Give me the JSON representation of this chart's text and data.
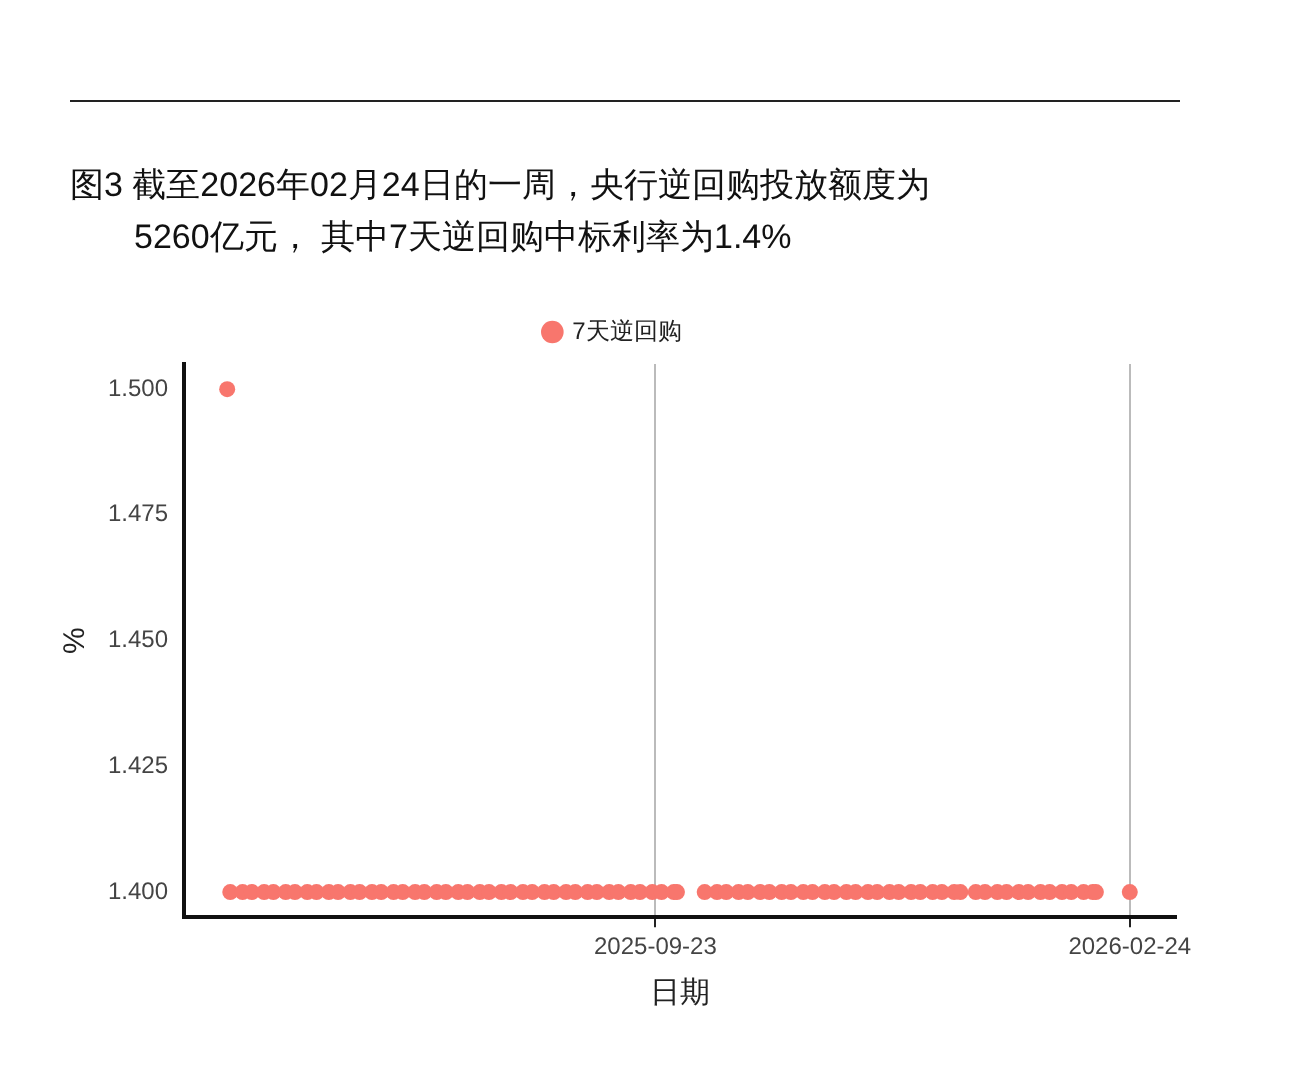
{
  "chart_data": {
    "type": "scatter",
    "title": "图3  截至2026年02月24日的一周，央行逆回购投放额度为5260亿元， 其中7天逆回购中标利率为1.4%",
    "xlabel": "日期",
    "ylabel": "%",
    "series": [
      {
        "name": "7天逆回购",
        "color": "#f8766d",
        "x": [
          "2025-05-07",
          "2025-05-08",
          "2025-05-12",
          "2025-05-15",
          "2025-05-19",
          "2025-05-22",
          "2025-05-26",
          "2025-05-29",
          "2025-06-02",
          "2025-06-05",
          "2025-06-09",
          "2025-06-12",
          "2025-06-16",
          "2025-06-19",
          "2025-06-23",
          "2025-06-26",
          "2025-06-30",
          "2025-07-03",
          "2025-07-07",
          "2025-07-10",
          "2025-07-14",
          "2025-07-17",
          "2025-07-21",
          "2025-07-24",
          "2025-07-28",
          "2025-07-31",
          "2025-08-04",
          "2025-08-07",
          "2025-08-11",
          "2025-08-14",
          "2025-08-18",
          "2025-08-21",
          "2025-08-25",
          "2025-08-28",
          "2025-09-01",
          "2025-09-04",
          "2025-09-08",
          "2025-09-11",
          "2025-09-15",
          "2025-09-18",
          "2025-09-22",
          "2025-09-25",
          "2025-09-29",
          "2025-09-30",
          "2025-10-09",
          "2025-10-13",
          "2025-10-16",
          "2025-10-20",
          "2025-10-23",
          "2025-10-27",
          "2025-10-30",
          "2025-11-03",
          "2025-11-06",
          "2025-11-10",
          "2025-11-13",
          "2025-11-17",
          "2025-11-20",
          "2025-11-24",
          "2025-11-27",
          "2025-12-01",
          "2025-12-04",
          "2025-12-08",
          "2025-12-11",
          "2025-12-15",
          "2025-12-18",
          "2025-12-22",
          "2025-12-25",
          "2025-12-29",
          "2025-12-31",
          "2026-01-05",
          "2026-01-08",
          "2026-01-12",
          "2026-01-15",
          "2026-01-19",
          "2026-01-22",
          "2026-01-26",
          "2026-01-29",
          "2026-02-02",
          "2026-02-05",
          "2026-02-09",
          "2026-02-12",
          "2026-02-13",
          "2026-02-24"
        ],
        "values": [
          1.5,
          1.4,
          1.4,
          1.4,
          1.4,
          1.4,
          1.4,
          1.4,
          1.4,
          1.4,
          1.4,
          1.4,
          1.4,
          1.4,
          1.4,
          1.4,
          1.4,
          1.4,
          1.4,
          1.4,
          1.4,
          1.4,
          1.4,
          1.4,
          1.4,
          1.4,
          1.4,
          1.4,
          1.4,
          1.4,
          1.4,
          1.4,
          1.4,
          1.4,
          1.4,
          1.4,
          1.4,
          1.4,
          1.4,
          1.4,
          1.4,
          1.4,
          1.4,
          1.4,
          1.4,
          1.4,
          1.4,
          1.4,
          1.4,
          1.4,
          1.4,
          1.4,
          1.4,
          1.4,
          1.4,
          1.4,
          1.4,
          1.4,
          1.4,
          1.4,
          1.4,
          1.4,
          1.4,
          1.4,
          1.4,
          1.4,
          1.4,
          1.4,
          1.4,
          1.4,
          1.4,
          1.4,
          1.4,
          1.4,
          1.4,
          1.4,
          1.4,
          1.4,
          1.4,
          1.4,
          1.4,
          1.4,
          1.4
        ]
      }
    ],
    "xlim": [
      "2025-04-23",
      "2026-03-11"
    ],
    "xticks": [
      "2025-09-23",
      "2026-02-24"
    ],
    "ylim": [
      1.395,
      1.505
    ],
    "yticks": [
      {
        "value": 1.4,
        "label": "1.400"
      },
      1.425,
      {
        "value": 1.45,
        "label": "1.450"
      },
      1.475,
      {
        "value": 1.5,
        "label": "1.500"
      }
    ],
    "grid": "x",
    "legend": "top",
    "marker": "circle"
  }
}
